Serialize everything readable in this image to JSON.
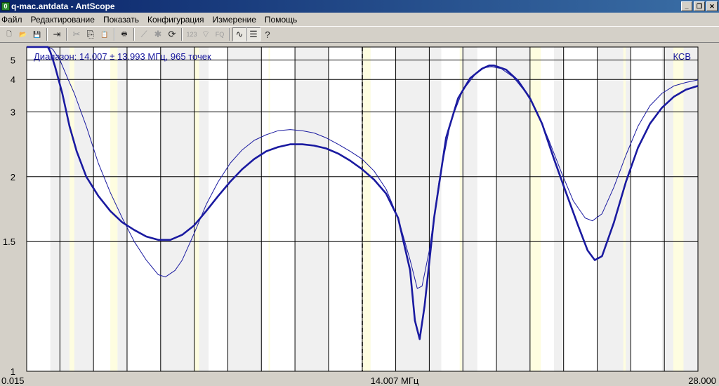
{
  "window": {
    "title": "q-mac.antdata - AntScope",
    "app_icon": "antscope-icon",
    "controls": {
      "minimize": "_",
      "restore": "❐",
      "close": "✕"
    }
  },
  "menu": {
    "items": [
      "Файл",
      "Редактирование",
      "Показать",
      "Конфигурация",
      "Измерение",
      "Помощь"
    ]
  },
  "toolbar": {
    "buttons": [
      {
        "name": "new-file-icon",
        "glyph": "🗋",
        "enabled": true
      },
      {
        "name": "open-folder-icon",
        "glyph": "📂",
        "enabled": true
      },
      {
        "name": "save-icon",
        "glyph": "💾",
        "enabled": true
      },
      {
        "sep": true
      },
      {
        "name": "export-icon",
        "glyph": "⇥",
        "enabled": true
      },
      {
        "sep": true
      },
      {
        "name": "cut-icon",
        "glyph": "✂",
        "enabled": false
      },
      {
        "name": "copy-icon",
        "glyph": "⎘",
        "enabled": true
      },
      {
        "name": "paste-icon",
        "glyph": "📋",
        "enabled": true
      },
      {
        "sep": true
      },
      {
        "name": "print-icon",
        "glyph": "🖶",
        "enabled": true
      },
      {
        "sep": true
      },
      {
        "name": "graph-icon",
        "glyph": "⟋",
        "enabled": false
      },
      {
        "name": "star-icon",
        "glyph": "✱",
        "enabled": false
      },
      {
        "name": "refresh-icon",
        "glyph": "⟳",
        "enabled": true
      },
      {
        "sep": true
      },
      {
        "name": "numbers-icon",
        "glyph": "123",
        "enabled": false
      },
      {
        "name": "wireless-icon",
        "glyph": "⌔",
        "enabled": false
      },
      {
        "name": "fq-icon",
        "glyph": "FQ",
        "enabled": false
      },
      {
        "sep": true
      },
      {
        "name": "waveform-icon",
        "glyph": "∿",
        "enabled": true,
        "pressed": true
      },
      {
        "name": "notes-icon",
        "glyph": "☰",
        "enabled": true,
        "pressed": true
      },
      {
        "name": "help-icon",
        "glyph": "?",
        "enabled": true
      }
    ]
  },
  "colors": {
    "plot_background": "#ffffff",
    "band_gray": "#f0f0f0",
    "band_yellow": "#fefde0",
    "grid": "#000000",
    "trace": "#1a1aa0",
    "overlay_text": "#1a1aa0"
  },
  "chart_data": {
    "type": "line",
    "range_label": "Диапазон: 14.007 ± 13.993 МГц, 965 точек",
    "y_quantity": "КСВ",
    "xlim": [
      0.015,
      28.0
    ],
    "x_ticks": [
      {
        "value": 0.015,
        "label": "0.015"
      },
      {
        "value": 14.007,
        "label": "14.007 МГц"
      },
      {
        "value": 28.0,
        "label": "28.000"
      }
    ],
    "y_scale": "reciprocal",
    "ylim": [
      1,
      6
    ],
    "y_ticks": [
      {
        "value": 1,
        "label": "1"
      },
      {
        "value": 1.5,
        "label": "1.5"
      },
      {
        "value": 2,
        "label": "2"
      },
      {
        "value": 3,
        "label": "3"
      },
      {
        "value": 4,
        "label": "4"
      },
      {
        "value": 5,
        "label": "5"
      }
    ],
    "x_gridlines": [
      0.015,
      1.4,
      2.8,
      4.2,
      5.6,
      7.0,
      8.4,
      9.8,
      11.2,
      12.6,
      14.007,
      15.4,
      16.8,
      18.2,
      19.6,
      21.0,
      22.4,
      23.8,
      25.2,
      26.6,
      28.0
    ],
    "marker_x": 14.007,
    "gray_bands": [
      [
        1.0,
        2.8
      ],
      [
        3.8,
        4.2
      ],
      [
        5.6,
        7.6
      ],
      [
        8.4,
        9.8
      ],
      [
        11.2,
        12.6
      ],
      [
        14.0,
        14.35
      ],
      [
        15.4,
        17.3
      ],
      [
        18.2,
        18.8
      ],
      [
        19.6,
        21.0
      ],
      [
        22.0,
        22.4
      ],
      [
        23.8,
        25.2
      ],
      [
        26.5,
        28.0
      ]
    ],
    "yellow_bands": [
      [
        1.8,
        2.0
      ],
      [
        3.5,
        3.8
      ],
      [
        7.0,
        7.2
      ],
      [
        10.1,
        10.15
      ],
      [
        14.0,
        14.35
      ],
      [
        18.068,
        18.168
      ],
      [
        21.0,
        21.45
      ],
      [
        24.89,
        24.99
      ],
      [
        26.97,
        27.4
      ]
    ],
    "series": [
      {
        "name": "",
        "stroke_width": 2.6,
        "points": [
          [
            0.015,
            6.0
          ],
          [
            0.9,
            6.0
          ],
          [
            1.0,
            5.6
          ],
          [
            1.2,
            4.6
          ],
          [
            1.5,
            3.5
          ],
          [
            1.8,
            2.7
          ],
          [
            2.1,
            2.3
          ],
          [
            2.5,
            2.0
          ],
          [
            3.0,
            1.82
          ],
          [
            3.5,
            1.7
          ],
          [
            4.0,
            1.62
          ],
          [
            4.5,
            1.57
          ],
          [
            5.0,
            1.53
          ],
          [
            5.5,
            1.51
          ],
          [
            6.0,
            1.51
          ],
          [
            6.5,
            1.54
          ],
          [
            7.0,
            1.6
          ],
          [
            7.5,
            1.7
          ],
          [
            8.0,
            1.82
          ],
          [
            8.5,
            1.95
          ],
          [
            9.0,
            2.08
          ],
          [
            9.5,
            2.2
          ],
          [
            10.0,
            2.3
          ],
          [
            10.5,
            2.36
          ],
          [
            11.0,
            2.4
          ],
          [
            11.5,
            2.4
          ],
          [
            12.0,
            2.38
          ],
          [
            12.5,
            2.34
          ],
          [
            13.0,
            2.27
          ],
          [
            13.5,
            2.18
          ],
          [
            14.0,
            2.08
          ],
          [
            14.5,
            1.97
          ],
          [
            15.0,
            1.84
          ],
          [
            15.5,
            1.65
          ],
          [
            16.0,
            1.35
          ],
          [
            16.2,
            1.15
          ],
          [
            16.4,
            1.09
          ],
          [
            16.6,
            1.2
          ],
          [
            17.0,
            1.65
          ],
          [
            17.5,
            2.5
          ],
          [
            18.0,
            3.35
          ],
          [
            18.5,
            4.05
          ],
          [
            19.0,
            4.5
          ],
          [
            19.3,
            4.67
          ],
          [
            19.5,
            4.67
          ],
          [
            20.0,
            4.45
          ],
          [
            20.5,
            3.95
          ],
          [
            21.0,
            3.35
          ],
          [
            21.5,
            2.75
          ],
          [
            22.0,
            2.2
          ],
          [
            22.5,
            1.85
          ],
          [
            23.0,
            1.6
          ],
          [
            23.4,
            1.45
          ],
          [
            23.7,
            1.4
          ],
          [
            24.0,
            1.42
          ],
          [
            24.5,
            1.62
          ],
          [
            25.0,
            1.95
          ],
          [
            25.5,
            2.35
          ],
          [
            26.0,
            2.75
          ],
          [
            26.5,
            3.1
          ],
          [
            27.0,
            3.4
          ],
          [
            27.5,
            3.62
          ],
          [
            28.0,
            3.75
          ]
        ]
      },
      {
        "name": "",
        "stroke_width": 1.0,
        "points": [
          [
            0.015,
            6.0
          ],
          [
            0.9,
            6.0
          ],
          [
            1.1,
            5.8
          ],
          [
            1.4,
            5.0
          ],
          [
            1.7,
            4.1
          ],
          [
            2.0,
            3.5
          ],
          [
            2.5,
            2.7
          ],
          [
            3.0,
            2.15
          ],
          [
            3.5,
            1.85
          ],
          [
            4.0,
            1.65
          ],
          [
            4.5,
            1.5
          ],
          [
            5.0,
            1.4
          ],
          [
            5.5,
            1.33
          ],
          [
            5.8,
            1.32
          ],
          [
            6.2,
            1.35
          ],
          [
            6.5,
            1.4
          ],
          [
            7.0,
            1.55
          ],
          [
            7.5,
            1.75
          ],
          [
            8.0,
            1.95
          ],
          [
            8.5,
            2.15
          ],
          [
            9.0,
            2.32
          ],
          [
            9.5,
            2.46
          ],
          [
            10.0,
            2.55
          ],
          [
            10.5,
            2.62
          ],
          [
            11.0,
            2.64
          ],
          [
            11.5,
            2.62
          ],
          [
            12.0,
            2.58
          ],
          [
            12.5,
            2.5
          ],
          [
            13.0,
            2.4
          ],
          [
            13.5,
            2.3
          ],
          [
            14.0,
            2.2
          ],
          [
            14.5,
            2.06
          ],
          [
            15.0,
            1.88
          ],
          [
            15.5,
            1.65
          ],
          [
            16.0,
            1.4
          ],
          [
            16.3,
            1.27
          ],
          [
            16.5,
            1.28
          ],
          [
            16.8,
            1.45
          ],
          [
            17.2,
            1.95
          ],
          [
            17.7,
            2.8
          ],
          [
            18.2,
            3.6
          ],
          [
            18.7,
            4.2
          ],
          [
            19.1,
            4.55
          ],
          [
            19.4,
            4.6
          ],
          [
            19.8,
            4.5
          ],
          [
            20.3,
            4.1
          ],
          [
            20.8,
            3.55
          ],
          [
            21.3,
            3.0
          ],
          [
            21.8,
            2.45
          ],
          [
            22.3,
            2.05
          ],
          [
            22.8,
            1.78
          ],
          [
            23.3,
            1.65
          ],
          [
            23.6,
            1.63
          ],
          [
            24.0,
            1.68
          ],
          [
            24.5,
            1.9
          ],
          [
            25.0,
            2.25
          ],
          [
            25.5,
            2.7
          ],
          [
            26.0,
            3.15
          ],
          [
            26.5,
            3.5
          ],
          [
            27.0,
            3.75
          ],
          [
            27.5,
            3.88
          ],
          [
            28.0,
            3.98
          ]
        ]
      }
    ]
  }
}
